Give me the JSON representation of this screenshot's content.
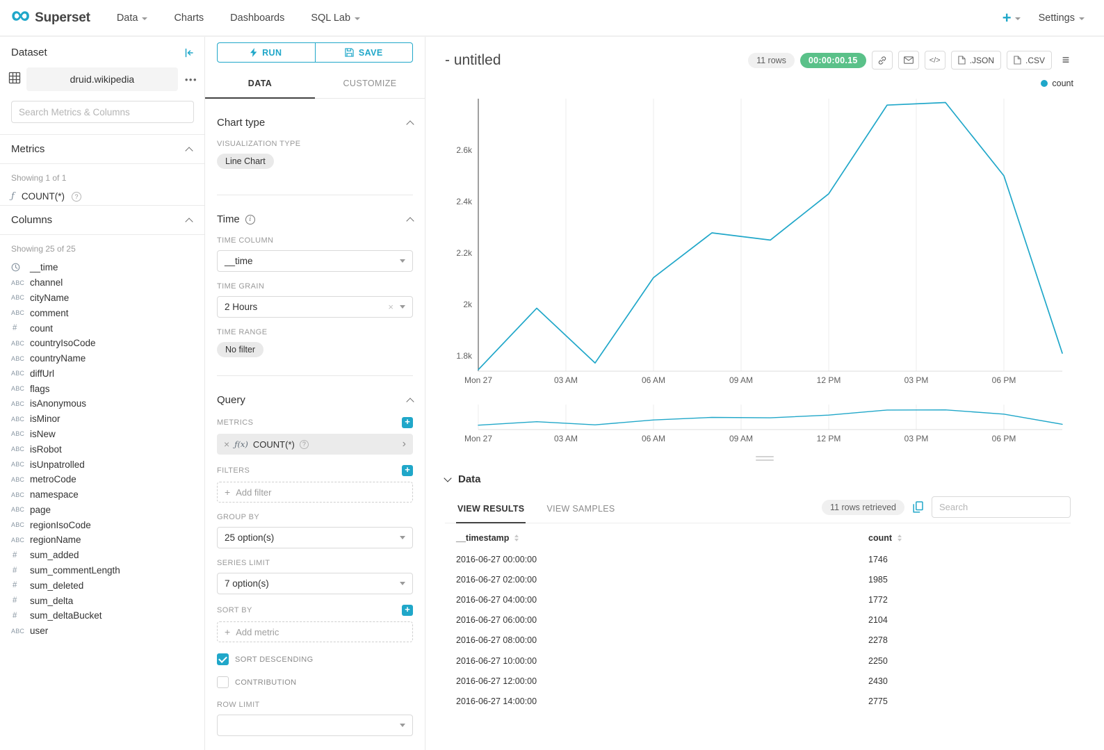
{
  "navbar": {
    "brand": "Superset",
    "items": [
      {
        "label": "Data"
      },
      {
        "label": "Charts"
      },
      {
        "label": "Dashboards"
      },
      {
        "label": "SQL Lab"
      }
    ],
    "settings_label": "Settings"
  },
  "dataset_panel": {
    "title": "Dataset",
    "dataset_name": "druid.wikipedia",
    "search_placeholder": "Search Metrics & Columns",
    "metrics_title": "Metrics",
    "metrics_showing": "Showing 1 of 1",
    "metrics": [
      {
        "name": "COUNT(*)",
        "type": "function"
      }
    ],
    "columns_title": "Columns",
    "columns_showing": "Showing 25 of 25",
    "columns": [
      {
        "name": "__time",
        "type": "time"
      },
      {
        "name": "channel",
        "type": "text"
      },
      {
        "name": "cityName",
        "type": "text"
      },
      {
        "name": "comment",
        "type": "text"
      },
      {
        "name": "count",
        "type": "number"
      },
      {
        "name": "countryIsoCode",
        "type": "text"
      },
      {
        "name": "countryName",
        "type": "text"
      },
      {
        "name": "diffUrl",
        "type": "text"
      },
      {
        "name": "flags",
        "type": "text"
      },
      {
        "name": "isAnonymous",
        "type": "text"
      },
      {
        "name": "isMinor",
        "type": "text"
      },
      {
        "name": "isNew",
        "type": "text"
      },
      {
        "name": "isRobot",
        "type": "text"
      },
      {
        "name": "isUnpatrolled",
        "type": "text"
      },
      {
        "name": "metroCode",
        "type": "text"
      },
      {
        "name": "namespace",
        "type": "text"
      },
      {
        "name": "page",
        "type": "text"
      },
      {
        "name": "regionIsoCode",
        "type": "text"
      },
      {
        "name": "regionName",
        "type": "text"
      },
      {
        "name": "sum_added",
        "type": "number"
      },
      {
        "name": "sum_commentLength",
        "type": "number"
      },
      {
        "name": "sum_deleted",
        "type": "number"
      },
      {
        "name": "sum_delta",
        "type": "number"
      },
      {
        "name": "sum_deltaBucket",
        "type": "number"
      },
      {
        "name": "user",
        "type": "text"
      }
    ]
  },
  "control_panel": {
    "run_label": "RUN",
    "save_label": "SAVE",
    "tabs": [
      {
        "label": "DATA"
      },
      {
        "label": "CUSTOMIZE"
      }
    ],
    "chart_type_title": "Chart type",
    "viz_type_label": "VISUALIZATION TYPE",
    "viz_type_value": "Line Chart",
    "time_title": "Time",
    "time_column_label": "TIME COLUMN",
    "time_column_value": "__time",
    "time_grain_label": "TIME GRAIN",
    "time_grain_value": "2 Hours",
    "time_range_label": "TIME RANGE",
    "time_range_value": "No filter",
    "query_title": "Query",
    "metrics_label": "METRICS",
    "metric_prefix": "ƒ(x)",
    "metric_value": "COUNT(*)",
    "filters_label": "FILTERS",
    "add_filter_label": "Add filter",
    "group_by_label": "GROUP BY",
    "group_by_value": "25 option(s)",
    "series_limit_label": "SERIES LIMIT",
    "series_limit_value": "7 option(s)",
    "sort_by_label": "SORT BY",
    "add_metric_label": "Add metric",
    "sort_descending_label": "SORT DESCENDING",
    "contribution_label": "CONTRIBUTION",
    "row_limit_label": "ROW LIMIT"
  },
  "chart_header": {
    "title": "- untitled",
    "rows_badge": "11 rows",
    "timer_badge": "00:00:00.15",
    "json_button": ".JSON",
    "csv_button": ".CSV"
  },
  "chart_data": {
    "type": "line",
    "title": "",
    "xlabel": "",
    "ylabel": "",
    "legend": [
      "count"
    ],
    "legend_position": "top-right",
    "grid": "vertical",
    "series": [
      {
        "name": "count",
        "color": "#20A7C9",
        "x": [
          "2016-06-27 00:00:00",
          "2016-06-27 02:00:00",
          "2016-06-27 04:00:00",
          "2016-06-27 06:00:00",
          "2016-06-27 08:00:00",
          "2016-06-27 10:00:00",
          "2016-06-27 12:00:00",
          "2016-06-27 14:00:00",
          "2016-06-27 16:00:00",
          "2016-06-27 18:00:00",
          "2016-06-27 20:00:00"
        ],
        "values": [
          1746,
          1985,
          1772,
          2104,
          2278,
          2250,
          2430,
          2775,
          2785,
          2500,
          1810
        ]
      }
    ],
    "x_tick_hours": [
      0,
      3,
      6,
      9,
      12,
      15,
      18
    ],
    "x_tick_labels": [
      "Mon 27",
      "03 AM",
      "06 AM",
      "09 AM",
      "12 PM",
      "03 PM",
      "06 PM"
    ],
    "y_ticks": [
      1800,
      2000,
      2200,
      2400,
      2600
    ],
    "y_tick_labels": [
      "1.8k",
      "2k",
      "2.2k",
      "2.4k",
      "2.6k"
    ],
    "ylim": [
      1740,
      2800
    ]
  },
  "data_panel": {
    "title": "Data",
    "tabs": [
      {
        "label": "VIEW RESULTS"
      },
      {
        "label": "VIEW SAMPLES"
      }
    ],
    "rows_retrieved": "11 rows retrieved",
    "search_placeholder": "Search",
    "table": {
      "columns": [
        "__timestamp",
        "count"
      ],
      "rows": [
        [
          "2016-06-27 00:00:00",
          "1746"
        ],
        [
          "2016-06-27 02:00:00",
          "1985"
        ],
        [
          "2016-06-27 04:00:00",
          "1772"
        ],
        [
          "2016-06-27 06:00:00",
          "2104"
        ],
        [
          "2016-06-27 08:00:00",
          "2278"
        ],
        [
          "2016-06-27 10:00:00",
          "2250"
        ],
        [
          "2016-06-27 12:00:00",
          "2430"
        ],
        [
          "2016-06-27 14:00:00",
          "2775"
        ]
      ]
    }
  }
}
